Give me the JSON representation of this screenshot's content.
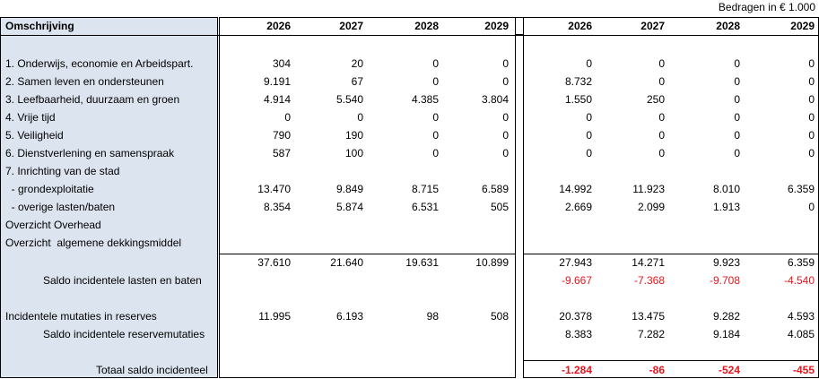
{
  "note": "Bedragen in € 1.000",
  "header": {
    "label": "Omschrijving",
    "years_left": [
      "2026",
      "2027",
      "2028",
      "2029"
    ],
    "years_right": [
      "2026",
      "2027",
      "2028",
      "2029"
    ]
  },
  "rows": [
    {
      "label": "1. Onderwijs, economie en Arbeidspart.",
      "left": [
        "304",
        "20",
        "0",
        "0"
      ],
      "right": [
        "0",
        "0",
        "0",
        "0"
      ]
    },
    {
      "label": "2. Samen leven en ondersteunen",
      "left": [
        "9.191",
        "67",
        "0",
        "0"
      ],
      "right": [
        "8.732",
        "0",
        "0",
        "0"
      ]
    },
    {
      "label": "3. Leefbaarheid, duurzaam en groen",
      "left": [
        "4.914",
        "5.540",
        "4.385",
        "3.804"
      ],
      "right": [
        "1.550",
        "250",
        "0",
        "0"
      ]
    },
    {
      "label": "4. Vrije tijd",
      "left": [
        "0",
        "0",
        "0",
        "0"
      ],
      "right": [
        "0",
        "0",
        "0",
        "0"
      ]
    },
    {
      "label": "5. Veiligheid",
      "left": [
        "790",
        "190",
        "0",
        "0"
      ],
      "right": [
        "0",
        "0",
        "0",
        "0"
      ]
    },
    {
      "label": "6. Dienstverlening en samenspraak",
      "left": [
        "587",
        "100",
        "0",
        "0"
      ],
      "right": [
        "0",
        "0",
        "0",
        "0"
      ]
    },
    {
      "label": "7. Inrichting van de stad",
      "left": [
        "",
        "",
        "",
        ""
      ],
      "right": [
        "",
        "",
        "",
        ""
      ]
    },
    {
      "label": "  - grondexploitatie",
      "left": [
        "13.470",
        "9.849",
        "8.715",
        "6.589"
      ],
      "right": [
        "14.992",
        "11.923",
        "8.010",
        "6.359"
      ]
    },
    {
      "label": "  - overige lasten/baten",
      "left": [
        "8.354",
        "5.874",
        "6.531",
        "505"
      ],
      "right": [
        "2.669",
        "2.099",
        "1.913",
        "0"
      ]
    },
    {
      "label": "Overzicht Overhead",
      "left": [
        "",
        "",
        "",
        ""
      ],
      "right": [
        "",
        "",
        "",
        ""
      ]
    },
    {
      "label": "Overzicht  algemene dekkingsmiddel",
      "left": [
        "",
        "",
        "",
        ""
      ],
      "right": [
        "",
        "",
        "",
        ""
      ]
    },
    {
      "label": "",
      "left": [
        "37.610",
        "21.640",
        "19.631",
        "10.899"
      ],
      "right": [
        "27.943",
        "14.271",
        "9.923",
        "6.359"
      ]
    },
    {
      "label": "Saldo incidentele lasten en baten",
      "left": [
        "",
        "",
        "",
        ""
      ],
      "right": [
        "-9.667",
        "-7.368",
        "-9.708",
        "-4.540"
      ]
    },
    {
      "label": "",
      "left": [
        "",
        "",
        "",
        ""
      ],
      "right": [
        "",
        "",
        "",
        ""
      ]
    },
    {
      "label": "Incidentele mutaties in reserves",
      "left": [
        "11.995",
        "6.193",
        "98",
        "508"
      ],
      "right": [
        "20.378",
        "13.475",
        "9.282",
        "4.593"
      ]
    },
    {
      "label": "Saldo incidentele reservemutaties",
      "left": [
        "",
        "",
        "",
        ""
      ],
      "right": [
        "8.383",
        "7.282",
        "9.184",
        "4.085"
      ]
    },
    {
      "label": "",
      "left": [
        "",
        "",
        "",
        ""
      ],
      "right": [
        "",
        "",
        "",
        ""
      ]
    },
    {
      "label": "Totaal saldo incidenteel",
      "left": [
        "",
        "",
        "",
        ""
      ],
      "right": [
        "-1.284",
        "-86",
        "-524",
        "-455"
      ]
    }
  ],
  "colors": {
    "negative": "#e8141b",
    "label_bg": "#dce4ef"
  }
}
